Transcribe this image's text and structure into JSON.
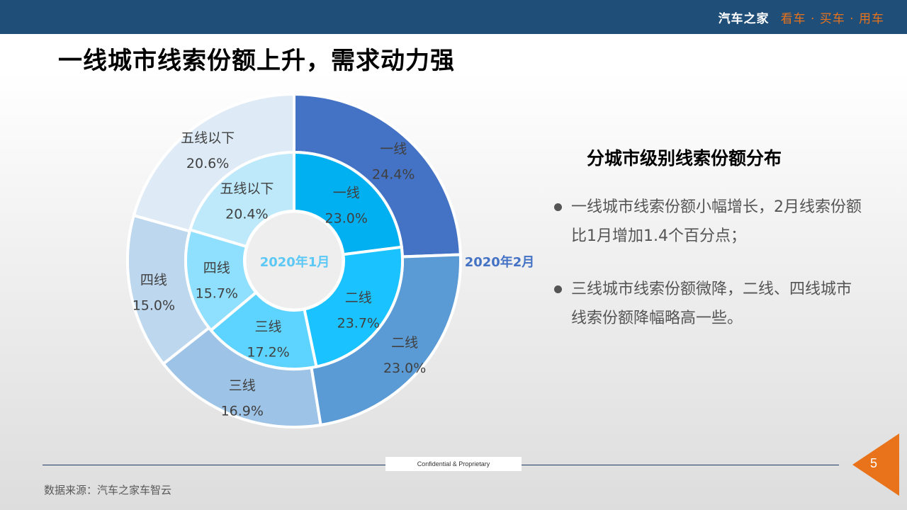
{
  "header": {
    "brand_name": "汽车之家",
    "slogan": "看车 · 买车 · 用车"
  },
  "page_title": "一线城市线索份额上升，需求动力强",
  "chart_data": {
    "type": "pie",
    "subtype": "doughnut",
    "title": "",
    "rings": [
      {
        "name": "2020年1月",
        "position": "inner",
        "label_color": "#5bc8f5",
        "categories": [
          "一线",
          "二线",
          "三线",
          "四线",
          "五线以下"
        ],
        "values": [
          23.0,
          23.7,
          17.2,
          15.7,
          20.4
        ],
        "labels": [
          "23.0%",
          "23.7%",
          "17.2%",
          "15.7%",
          "20.4%"
        ],
        "colors": [
          "#00b0f0",
          "#1ac3ff",
          "#5dd4ff",
          "#8fdfff",
          "#bde9fb"
        ]
      },
      {
        "name": "2020年2月",
        "position": "outer",
        "label_color": "#4472c4",
        "categories": [
          "一线",
          "二线",
          "三线",
          "四线",
          "五线以下"
        ],
        "values": [
          24.4,
          23.0,
          16.9,
          15.0,
          20.6
        ],
        "labels": [
          "24.4%",
          "23.0%",
          "16.9%",
          "15.0%",
          "20.6%"
        ],
        "colors": [
          "#4472c4",
          "#5b9bd5",
          "#9dc3e6",
          "#bdd7ee",
          "#deebf7"
        ]
      }
    ],
    "legend": "none",
    "start_angle": 0,
    "direction": "clockwise"
  },
  "panel": {
    "title": "分城市级别线索份额分布",
    "bullets": [
      "一线城市线索份额小幅增长，2月线索份额比1月增加1.4个百分点；",
      "三线城市线索份额微降，二线、四线城市线索份额降幅略高一些。"
    ]
  },
  "footer": {
    "confidential": "Confidential & Proprietary",
    "source": "数据来源：汽车之家车智云",
    "page_number": "5",
    "accent_color": "#e8731a"
  }
}
